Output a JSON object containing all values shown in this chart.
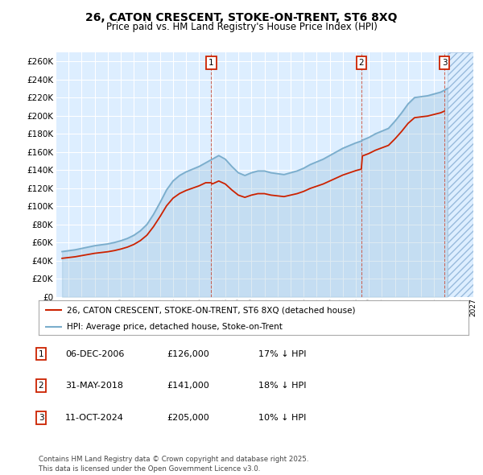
{
  "title": "26, CATON CRESCENT, STOKE-ON-TRENT, ST6 8XQ",
  "subtitle": "Price paid vs. HM Land Registry's House Price Index (HPI)",
  "ylim": [
    0,
    270000
  ],
  "yticks": [
    0,
    20000,
    40000,
    60000,
    80000,
    100000,
    120000,
    140000,
    160000,
    180000,
    200000,
    220000,
    240000,
    260000
  ],
  "xlim_start": 1995.4,
  "xlim_end": 2027.0,
  "background_color": "#ffffff",
  "plot_bg_color": "#ddeeff",
  "grid_color": "#ffffff",
  "hpi_color": "#7aadcc",
  "price_color": "#cc2200",
  "sale1_date": 2006.92,
  "sale1_price": 126000,
  "sale2_date": 2018.42,
  "sale2_price": 141000,
  "sale3_date": 2024.78,
  "sale3_price": 205000,
  "legend_label_price": "26, CATON CRESCENT, STOKE-ON-TRENT, ST6 8XQ (detached house)",
  "legend_label_hpi": "HPI: Average price, detached house, Stoke-on-Trent",
  "table_entries": [
    {
      "num": "1",
      "date": "06-DEC-2006",
      "price": "£126,000",
      "hpi": "17% ↓ HPI"
    },
    {
      "num": "2",
      "date": "31-MAY-2018",
      "price": "£141,000",
      "hpi": "18% ↓ HPI"
    },
    {
      "num": "3",
      "date": "11-OCT-2024",
      "price": "£205,000",
      "hpi": "10% ↓ HPI"
    }
  ],
  "footer": "Contains HM Land Registry data © Crown copyright and database right 2025.\nThis data is licensed under the Open Government Licence v3.0.",
  "hpi_years": [
    1995.5,
    1996.0,
    1996.5,
    1997.0,
    1997.5,
    1998.0,
    1998.5,
    1999.0,
    1999.5,
    2000.0,
    2000.5,
    2001.0,
    2001.5,
    2002.0,
    2002.5,
    2003.0,
    2003.5,
    2004.0,
    2004.5,
    2005.0,
    2005.5,
    2006.0,
    2006.5,
    2007.0,
    2007.5,
    2008.0,
    2008.5,
    2009.0,
    2009.5,
    2010.0,
    2010.5,
    2011.0,
    2011.5,
    2012.0,
    2012.5,
    2013.0,
    2013.5,
    2014.0,
    2014.5,
    2015.0,
    2015.5,
    2016.0,
    2016.5,
    2017.0,
    2017.5,
    2018.0,
    2018.42,
    2018.5,
    2019.0,
    2019.5,
    2020.0,
    2020.5,
    2021.0,
    2021.5,
    2022.0,
    2022.5,
    2023.0,
    2023.5,
    2024.0,
    2024.5,
    2024.78,
    2025.0
  ],
  "hpi_values": [
    50000,
    51000,
    52000,
    53500,
    55000,
    56500,
    57500,
    58500,
    60000,
    62000,
    64500,
    68000,
    73000,
    80000,
    91000,
    104000,
    118000,
    128000,
    134000,
    138000,
    141000,
    144000,
    148000,
    152000,
    156000,
    152000,
    144000,
    137000,
    134000,
    137000,
    139000,
    139000,
    137000,
    136000,
    135000,
    137000,
    139000,
    142000,
    146000,
    149000,
    152000,
    156000,
    160000,
    164000,
    167000,
    170000,
    172000,
    173000,
    176000,
    180000,
    183000,
    186000,
    194000,
    203000,
    213000,
    220000,
    221000,
    222000,
    224000,
    226000,
    228000,
    230000
  ]
}
